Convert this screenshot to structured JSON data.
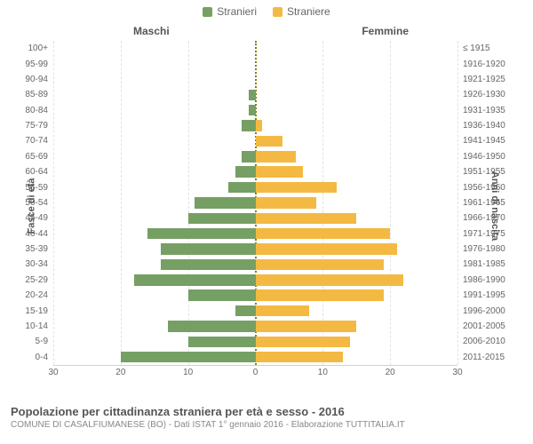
{
  "legend": {
    "male_label": "Stranieri",
    "female_label": "Straniere",
    "male_color": "#769f64",
    "female_color": "#f4b942"
  },
  "column_titles": {
    "left": "Maschi",
    "right": "Femmine"
  },
  "axis_titles": {
    "left": "Fasce di età",
    "right": "Anni di nascita"
  },
  "chart": {
    "type": "population-pyramid",
    "xlim": 30,
    "x_ticks": [
      30,
      20,
      10,
      0,
      10,
      20,
      30
    ],
    "background_color": "#ffffff",
    "grid_color": "#e2e2e2",
    "center_line_color": "#808000",
    "male_color": "#769f64",
    "female_color": "#f4b942",
    "label_color": "#666666",
    "label_fontsize": 10,
    "rows": [
      {
        "age": "100+",
        "birth": "≤ 1915",
        "male": 0,
        "female": 0
      },
      {
        "age": "95-99",
        "birth": "1916-1920",
        "male": 0,
        "female": 0
      },
      {
        "age": "90-94",
        "birth": "1921-1925",
        "male": 0,
        "female": 0
      },
      {
        "age": "85-89",
        "birth": "1926-1930",
        "male": 1,
        "female": 0
      },
      {
        "age": "80-84",
        "birth": "1931-1935",
        "male": 1,
        "female": 0
      },
      {
        "age": "75-79",
        "birth": "1936-1940",
        "male": 2,
        "female": 1
      },
      {
        "age": "70-74",
        "birth": "1941-1945",
        "male": 0,
        "female": 4
      },
      {
        "age": "65-69",
        "birth": "1946-1950",
        "male": 2,
        "female": 6
      },
      {
        "age": "60-64",
        "birth": "1951-1955",
        "male": 3,
        "female": 7
      },
      {
        "age": "55-59",
        "birth": "1956-1960",
        "male": 4,
        "female": 12
      },
      {
        "age": "50-54",
        "birth": "1961-1965",
        "male": 9,
        "female": 9
      },
      {
        "age": "45-49",
        "birth": "1966-1970",
        "male": 10,
        "female": 15
      },
      {
        "age": "40-44",
        "birth": "1971-1975",
        "male": 16,
        "female": 20
      },
      {
        "age": "35-39",
        "birth": "1976-1980",
        "male": 14,
        "female": 21
      },
      {
        "age": "30-34",
        "birth": "1981-1985",
        "male": 14,
        "female": 19
      },
      {
        "age": "25-29",
        "birth": "1986-1990",
        "male": 18,
        "female": 22
      },
      {
        "age": "20-24",
        "birth": "1991-1995",
        "male": 10,
        "female": 19
      },
      {
        "age": "15-19",
        "birth": "1996-2000",
        "male": 3,
        "female": 8
      },
      {
        "age": "10-14",
        "birth": "2001-2005",
        "male": 13,
        "female": 15
      },
      {
        "age": "5-9",
        "birth": "2006-2010",
        "male": 10,
        "female": 14
      },
      {
        "age": "0-4",
        "birth": "2011-2015",
        "male": 20,
        "female": 13
      }
    ]
  },
  "footer": {
    "title": "Popolazione per cittadinanza straniera per età e sesso - 2016",
    "subtitle": "COMUNE DI CASALFIUMANESE (BO) - Dati ISTAT 1° gennaio 2016 - Elaborazione TUTTITALIA.IT"
  }
}
